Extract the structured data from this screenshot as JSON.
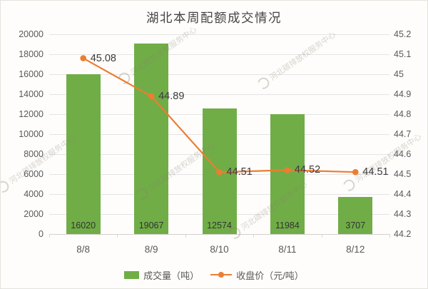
{
  "chart_data": {
    "type": "bar",
    "title": "湖北本周配额成交情况",
    "categories": [
      "8/8",
      "8/9",
      "8/10",
      "8/11",
      "8/12"
    ],
    "series": [
      {
        "name": "成交量（吨）",
        "kind": "bar",
        "axis": "left",
        "color": "#70ad47",
        "values": [
          16020,
          19067,
          12574,
          11984,
          3707
        ],
        "value_labels": [
          "16020",
          "19067",
          "12574",
          "11984",
          "3707"
        ]
      },
      {
        "name": "收盘价（元/吨）",
        "kind": "line",
        "axis": "right",
        "color": "#ed7d31",
        "values": [
          45.08,
          44.89,
          44.51,
          44.52,
          44.51
        ],
        "value_labels": [
          "45.08",
          "44.89",
          "44.51",
          "44.52",
          "44.51"
        ]
      }
    ],
    "left_axis": {
      "min": 0,
      "max": 20000,
      "step": 2000,
      "ticks": [
        "0",
        "2000",
        "4000",
        "6000",
        "8000",
        "10000",
        "12000",
        "14000",
        "16000",
        "18000",
        "20000"
      ]
    },
    "right_axis": {
      "min": 44.2,
      "max": 45.2,
      "step": 0.1,
      "ticks": [
        "44.2",
        "44.3",
        "44.4",
        "44.5",
        "44.6",
        "44.7",
        "44.8",
        "44.9",
        "45",
        "45.1",
        "45.2"
      ]
    },
    "grid": true,
    "legend_position": "bottom"
  },
  "legend": {
    "items": [
      {
        "label": "成交量（吨）",
        "swatch": "bar",
        "color": "#70ad47"
      },
      {
        "label": "收盘价（元/吨）",
        "swatch": "line",
        "color": "#ed7d31"
      }
    ]
  },
  "watermark": {
    "text": "河北碳排放权服务中心"
  },
  "colors": {
    "bar": "#70ad47",
    "line": "#ed7d31",
    "grid": "#e4e4e4",
    "axis_text": "#595959",
    "data_label": "#3b3b3b",
    "title": "#454545",
    "background": "#fefdfb",
    "border": "#e5e2dc",
    "watermark": "rgba(138,129,108,0.32)"
  }
}
